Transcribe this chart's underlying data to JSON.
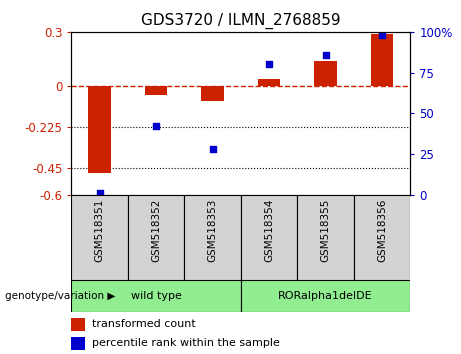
{
  "title": "GDS3720 / ILMN_2768859",
  "samples": [
    "GSM518351",
    "GSM518352",
    "GSM518353",
    "GSM518354",
    "GSM518355",
    "GSM518356"
  ],
  "red_values": [
    -0.48,
    -0.05,
    -0.08,
    0.04,
    0.14,
    0.29
  ],
  "blue_values": [
    1,
    42,
    28,
    80,
    86,
    98
  ],
  "ylim_left": [
    -0.6,
    0.3
  ],
  "ylim_right": [
    0,
    100
  ],
  "yticks_left": [
    0.3,
    0,
    -0.225,
    -0.45,
    -0.6
  ],
  "yticks_right": [
    100,
    75,
    50,
    25,
    0
  ],
  "hlines": [
    -0.225,
    -0.45
  ],
  "group1_label": "wild type",
  "group2_label": "RORalpha1delDE",
  "group1_indices": [
    0,
    1,
    2
  ],
  "group2_indices": [
    3,
    4,
    5
  ],
  "green_color": "#90ee90",
  "gray_color": "#d3d3d3",
  "bar_color": "#cc2200",
  "dot_color": "#0000cc",
  "bar_width": 0.4,
  "legend_red": "transformed count",
  "legend_blue": "percentile rank within the sample",
  "genotype_label": "genotype/variation",
  "title_fontsize": 11,
  "tick_fontsize": 8.5,
  "background_color": "#ffffff"
}
